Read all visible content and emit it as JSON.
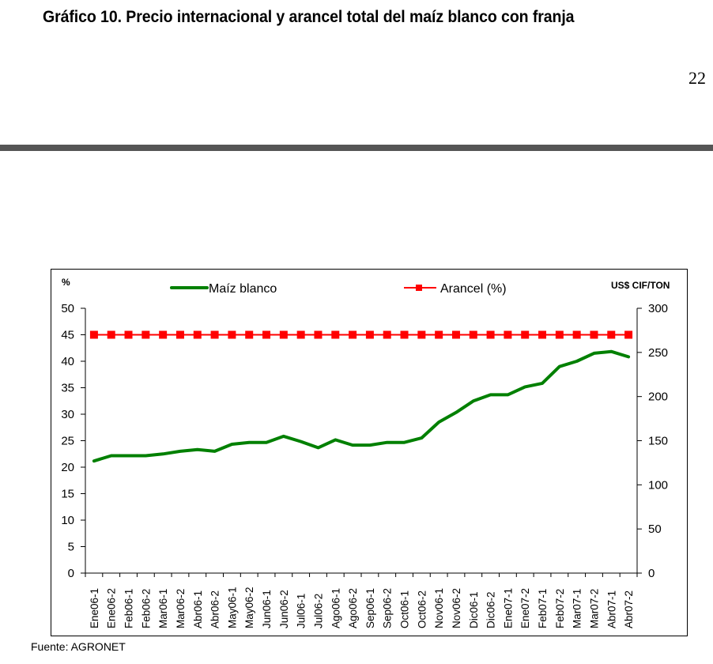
{
  "document": {
    "title": "Gráfico 10. Precio internacional y arancel total del maíz blanco con franja",
    "page_number": "22",
    "source": "Fuente: AGRONET"
  },
  "chart_data": {
    "type": "line",
    "title": "Gráfico 10. Precio internacional y arancel total del maíz blanco con franja",
    "xlabel": "",
    "ylabel": "%",
    "y2label": "US$ CIF/TON",
    "ylim": [
      0,
      50
    ],
    "y2lim": [
      0,
      300
    ],
    "yticks": [
      "0",
      "5",
      "10",
      "15",
      "20",
      "25",
      "30",
      "35",
      "40",
      "45",
      "50"
    ],
    "y2ticks": [
      "0",
      "50",
      "100",
      "150",
      "200",
      "250",
      "300"
    ],
    "grid": false,
    "legend_position": "top",
    "categories": [
      "Ene06-1",
      "Ene06-2",
      "Feb06-1",
      "Feb06-2",
      "Mar06-1",
      "Mar06-2",
      "Abr06-1",
      "Abr06-2",
      "May06-1",
      "May06-2",
      "Jun06-1",
      "Jun06-2",
      "Jul06-1",
      "Jul06-2",
      "Ago06-1",
      "Ago06-2",
      "Sep06-1",
      "Sep06-2",
      "Oct06-1",
      "Oct06-2",
      "Nov06-1",
      "Nov06-2",
      "Dic06-1",
      "Dic06-2",
      "Ene07-1",
      "Ene07-2",
      "Feb07-1",
      "Feb07-2",
      "Mar07-1",
      "Mar07-2",
      "Abr07-1",
      "Abr07-2"
    ],
    "series": [
      {
        "name": "Maíz blanco",
        "axis": "right",
        "unit": "US$ CIF/TON",
        "color": "#008000",
        "marker": "none",
        "values": [
          127,
          133,
          133,
          133,
          135,
          138,
          140,
          138,
          146,
          148,
          148,
          155,
          149,
          142,
          151,
          145,
          145,
          148,
          148,
          153,
          171,
          182,
          195,
          202,
          202,
          211,
          215,
          234,
          240,
          249,
          251,
          245
        ]
      },
      {
        "name": "Arancel (%)",
        "axis": "left",
        "unit": "%",
        "color": "#ff0000",
        "marker": "square",
        "values": [
          45,
          45,
          45,
          45,
          45,
          45,
          45,
          45,
          45,
          45,
          45,
          45,
          45,
          45,
          45,
          45,
          45,
          45,
          45,
          45,
          45,
          45,
          45,
          45,
          45,
          45,
          45,
          45,
          45,
          45,
          45,
          45
        ]
      }
    ]
  }
}
